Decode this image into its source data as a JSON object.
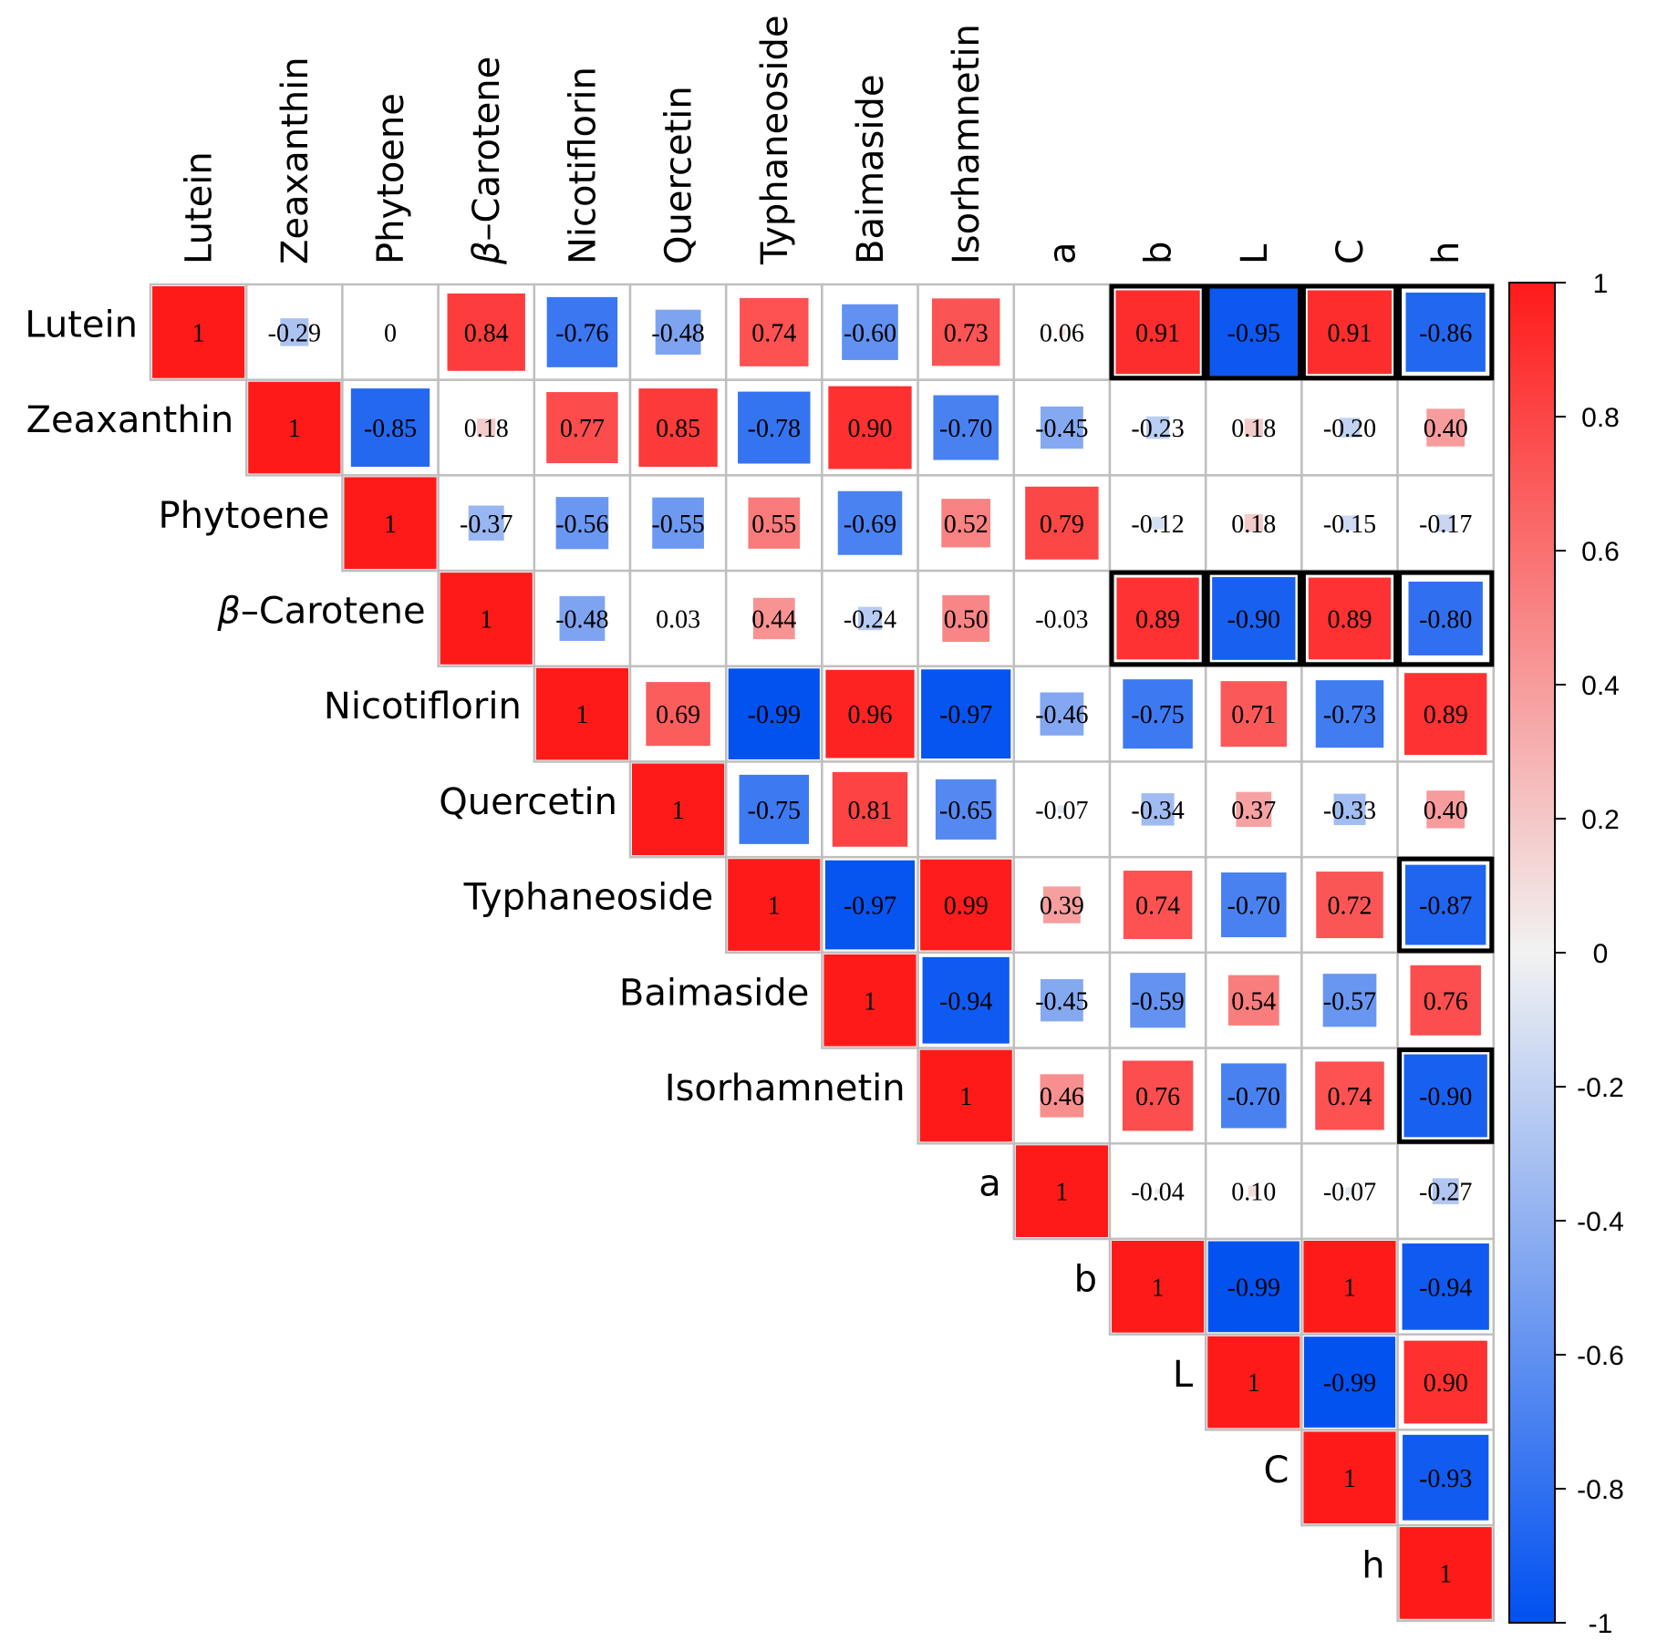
{
  "chart_data": {
    "type": "heatmap",
    "subtype": "upper-triangular correlation matrix",
    "variables": [
      "Lutein",
      "Zeaxanthin",
      "Phytoene",
      "β-Carotene",
      "Nicotiflorin",
      "Quercetin",
      "Typhaneoside",
      "Baimaside",
      "Isorhamnetin",
      "a",
      "b",
      "L",
      "C",
      "h"
    ],
    "row_labels": [
      {
        "prefix": "",
        "text": "Lutein"
      },
      {
        "prefix": "",
        "text": "Zeaxanthin"
      },
      {
        "prefix": "",
        "text": "Phytoene"
      },
      {
        "prefix": "β",
        "text": "–Carotene"
      },
      {
        "prefix": "",
        "text": "Nicotiflorin"
      },
      {
        "prefix": "",
        "text": "Quercetin"
      },
      {
        "prefix": "",
        "text": "Typhaneoside"
      },
      {
        "prefix": "",
        "text": "Baimaside"
      },
      {
        "prefix": "",
        "text": "Isorhamnetin"
      },
      {
        "prefix": "",
        "text": "a"
      },
      {
        "prefix": "",
        "text": "b"
      },
      {
        "prefix": "",
        "text": "L"
      },
      {
        "prefix": "",
        "text": "C"
      },
      {
        "prefix": "",
        "text": "h"
      }
    ],
    "matrix": [
      [
        "1",
        "-0.29",
        "0",
        "0.84",
        "-0.76",
        "-0.48",
        "0.74",
        "-0.60",
        "0.73",
        "0.06",
        "0.91",
        "-0.95",
        "0.91",
        "-0.86"
      ],
      [
        null,
        "1",
        "-0.85",
        "0.18",
        "0.77",
        "0.85",
        "-0.78",
        "0.90",
        "-0.70",
        "-0.45",
        "-0.23",
        "0.18",
        "-0.20",
        "0.40"
      ],
      [
        null,
        null,
        "1",
        "-0.37",
        "-0.56",
        "-0.55",
        "0.55",
        "-0.69",
        "0.52",
        "0.79",
        "-0.12",
        "0.18",
        "-0.15",
        "-0.17"
      ],
      [
        null,
        null,
        null,
        "1",
        "-0.48",
        "0.03",
        "0.44",
        "-0.24",
        "0.50",
        "-0.03",
        "0.89",
        "-0.90",
        "0.89",
        "-0.80"
      ],
      [
        null,
        null,
        null,
        null,
        "1",
        "0.69",
        "-0.99",
        "0.96",
        "-0.97",
        "-0.46",
        "-0.75",
        "0.71",
        "-0.73",
        "0.89"
      ],
      [
        null,
        null,
        null,
        null,
        null,
        "1",
        "-0.75",
        "0.81",
        "-0.65",
        "-0.07",
        "-0.34",
        "0.37",
        "-0.33",
        "0.40"
      ],
      [
        null,
        null,
        null,
        null,
        null,
        null,
        "1",
        "-0.97",
        "0.99",
        "0.39",
        "0.74",
        "-0.70",
        "0.72",
        "-0.87"
      ],
      [
        null,
        null,
        null,
        null,
        null,
        null,
        null,
        "1",
        "-0.94",
        "-0.45",
        "-0.59",
        "0.54",
        "-0.57",
        "0.76"
      ],
      [
        null,
        null,
        null,
        null,
        null,
        null,
        null,
        null,
        "1",
        "0.46",
        "0.76",
        "-0.70",
        "0.74",
        "-0.90"
      ],
      [
        null,
        null,
        null,
        null,
        null,
        null,
        null,
        null,
        null,
        "1",
        "-0.04",
        "0.10",
        "-0.07",
        "-0.27"
      ],
      [
        null,
        null,
        null,
        null,
        null,
        null,
        null,
        null,
        null,
        null,
        "1",
        "-0.99",
        "1",
        "-0.94"
      ],
      [
        null,
        null,
        null,
        null,
        null,
        null,
        null,
        null,
        null,
        null,
        null,
        "1",
        "-0.99",
        "0.90"
      ],
      [
        null,
        null,
        null,
        null,
        null,
        null,
        null,
        null,
        null,
        null,
        null,
        null,
        "1",
        "-0.93"
      ],
      [
        null,
        null,
        null,
        null,
        null,
        null,
        null,
        null,
        null,
        null,
        null,
        null,
        null,
        "1"
      ]
    ],
    "highlighted_cells": [
      [
        0,
        10
      ],
      [
        0,
        11
      ],
      [
        0,
        12
      ],
      [
        0,
        13
      ],
      [
        3,
        10
      ],
      [
        3,
        11
      ],
      [
        3,
        12
      ],
      [
        3,
        13
      ],
      [
        6,
        13
      ],
      [
        8,
        13
      ]
    ],
    "colorbar": {
      "range": [
        -1,
        1
      ],
      "ticks": [
        "1",
        "0.8",
        "0.6",
        "0.4",
        "0.2",
        "0",
        "-0.2",
        "-0.4",
        "-0.6",
        "-0.8",
        "-1"
      ],
      "colors": {
        "neg": "#0050f0",
        "mid": "#f2f2f2",
        "pos": "#ff1a1a"
      }
    },
    "grid_color": "#bfbfbf",
    "highlight_color": "#000000"
  }
}
